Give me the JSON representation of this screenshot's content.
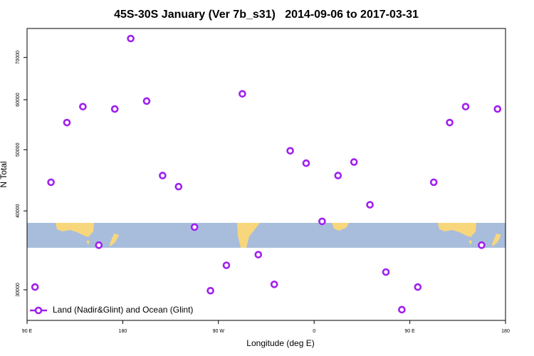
{
  "chart_data": {
    "type": "scatter",
    "title": "45S-30S January (Ver 7b_s31)   2014-09-06 to 2017-03-31",
    "xlabel": "Longitude (deg E)",
    "ylabel": "N Total",
    "x": [
      97.5,
      112.5,
      127.5,
      142.5,
      157.5,
      172.5,
      187.5,
      202.5,
      217.5,
      232.5,
      247.5,
      262.5,
      277.5,
      292.5,
      307.5,
      322.5,
      337.5,
      352.5,
      367.5,
      382.5,
      397.5,
      412.5,
      427.5,
      442.5,
      457.5,
      472.5,
      487.5,
      502.5,
      517.5,
      532.5
    ],
    "series": [
      {
        "name": "Land (Nadir&Glint) and Ocean (Glint)",
        "color": "#a020f0",
        "values": [
          30300,
          44400,
          55200,
          58500,
          35300,
          58000,
          75000,
          59700,
          45500,
          43700,
          37700,
          29900,
          32800,
          61300,
          34100,
          30600,
          49800,
          47600,
          38500,
          45500,
          47800,
          40900,
          32000,
          27900,
          30300,
          44400,
          55200,
          58500,
          35300,
          58000
        ]
      }
    ],
    "xlim": [
      90,
      540
    ],
    "xticks": [
      {
        "value": 90,
        "label": "90 E"
      },
      180,
      {
        "value": 270,
        "label": "90 W"
      },
      {
        "value": 360,
        "label": "0"
      },
      {
        "value": 450,
        "label": "90 E"
      },
      {
        "value": 540,
        "label": "180"
      }
    ],
    "ylim": [
      26830,
      77800
    ],
    "yticks": [
      30000,
      40000,
      50000,
      60000,
      70000
    ],
    "y_scale": "log",
    "legend": "bottom-left"
  }
}
